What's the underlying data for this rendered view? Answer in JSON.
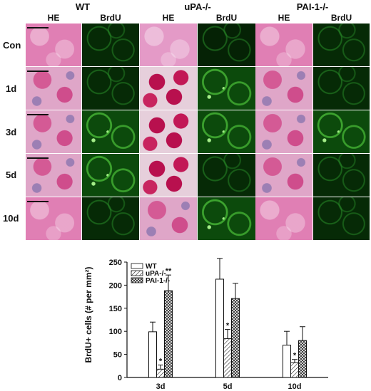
{
  "micrograph": {
    "groups": [
      "WT",
      "uPA-/-",
      "PAI-1-/-"
    ],
    "stains": [
      "HE",
      "BrdU"
    ],
    "rows": [
      "Con",
      "1d",
      "3d",
      "5d",
      "10d"
    ]
  },
  "chart_data": {
    "type": "bar",
    "categories": [
      "3d",
      "5d",
      "10d"
    ],
    "series": [
      {
        "name": "WT",
        "values": [
          99,
          213,
          70
        ],
        "errors": [
          21,
          45,
          30
        ],
        "pattern": "solid-white"
      },
      {
        "name": "uPA-/-",
        "values": [
          18,
          84,
          32
        ],
        "errors": [
          9,
          20,
          7
        ],
        "pattern": "hatch"
      },
      {
        "name": "PAI-1-/-",
        "values": [
          188,
          171,
          80
        ],
        "errors": [
          34,
          33,
          30
        ],
        "pattern": "crosshatch"
      }
    ],
    "annotations": [
      {
        "series": "uPA-/-",
        "category": "3d",
        "text": "*"
      },
      {
        "series": "PAI-1-/-",
        "category": "3d",
        "text": "**"
      },
      {
        "series": "uPA-/-",
        "category": "5d",
        "text": "*"
      },
      {
        "series": "uPA-/-",
        "category": "10d",
        "text": "*"
      }
    ],
    "ylabel": "BrdU+ cells (# per mm²)",
    "xlabel": "",
    "ylim": [
      0,
      250
    ],
    "yticks": [
      0,
      50,
      100,
      150,
      200,
      250
    ],
    "legend_position": "top-left"
  }
}
